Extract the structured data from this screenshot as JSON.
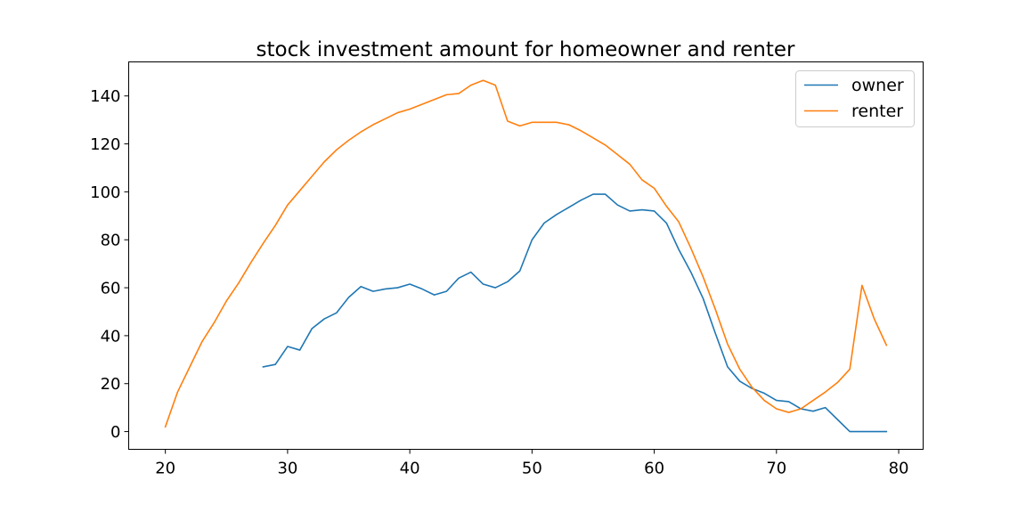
{
  "chart_data": {
    "type": "line",
    "title": "stock investment amount for homeowner and renter",
    "xlabel": "",
    "ylabel": "",
    "xlim": [
      17,
      82
    ],
    "ylim": [
      -7.4,
      154.2
    ],
    "xticks": [
      20,
      30,
      40,
      50,
      60,
      70,
      80
    ],
    "yticks": [
      0,
      20,
      40,
      60,
      80,
      100,
      120,
      140
    ],
    "grid": false,
    "legend": "top-right",
    "colors": {
      "owner": "#1f77b4",
      "renter": "#ff7f0e"
    },
    "series": [
      {
        "name": "owner",
        "x": [
          28,
          29,
          30,
          31,
          32,
          33,
          34,
          35,
          36,
          37,
          38,
          39,
          40,
          41,
          42,
          43,
          44,
          45,
          46,
          47,
          48,
          49,
          50,
          51,
          52,
          53,
          54,
          55,
          56,
          57,
          58,
          59,
          60,
          61,
          62,
          63,
          64,
          65,
          66,
          67,
          68,
          69,
          70,
          71,
          72,
          73,
          74,
          75,
          76,
          77,
          78,
          79
        ],
        "values": [
          27,
          28,
          35.5,
          34,
          43,
          47,
          49.5,
          56,
          60.5,
          58.5,
          59.5,
          60,
          61.5,
          59.5,
          57,
          58.5,
          64,
          66.5,
          61.5,
          60,
          62.5,
          67,
          80,
          87,
          90.5,
          93.5,
          96.5,
          99,
          99,
          94.5,
          92,
          92.5,
          92,
          87,
          76,
          66.5,
          55.5,
          41,
          27,
          21,
          18,
          16,
          13,
          12.5,
          9.5,
          8.5,
          10,
          5,
          0,
          0,
          0,
          0
        ]
      },
      {
        "name": "renter",
        "x": [
          20,
          21,
          22,
          23,
          24,
          25,
          26,
          27,
          28,
          29,
          30,
          31,
          32,
          33,
          34,
          35,
          36,
          37,
          38,
          39,
          40,
          41,
          42,
          43,
          44,
          45,
          46,
          47,
          48,
          49,
          50,
          51,
          52,
          53,
          54,
          55,
          56,
          57,
          58,
          59,
          60,
          61,
          62,
          63,
          64,
          65,
          66,
          67,
          68,
          69,
          70,
          71,
          72,
          73,
          74,
          75,
          76,
          77,
          78,
          79
        ],
        "values": [
          2,
          16.5,
          27,
          37.5,
          45.5,
          54.5,
          62,
          70.5,
          78.5,
          86,
          94.5,
          100.5,
          106.5,
          112.5,
          117.5,
          121.5,
          125,
          128,
          130.5,
          133,
          134.5,
          136.5,
          138.5,
          140.5,
          141,
          144.5,
          146.5,
          144.5,
          129.5,
          127.5,
          129,
          129,
          129,
          128,
          125.5,
          122.5,
          119.5,
          115.5,
          111.5,
          105,
          101.5,
          94,
          87.5,
          76.5,
          64.5,
          51,
          36.5,
          26,
          18.5,
          13,
          9.5,
          8,
          9.5,
          13,
          16.5,
          20.5,
          26,
          61,
          47,
          36
        ]
      }
    ]
  }
}
